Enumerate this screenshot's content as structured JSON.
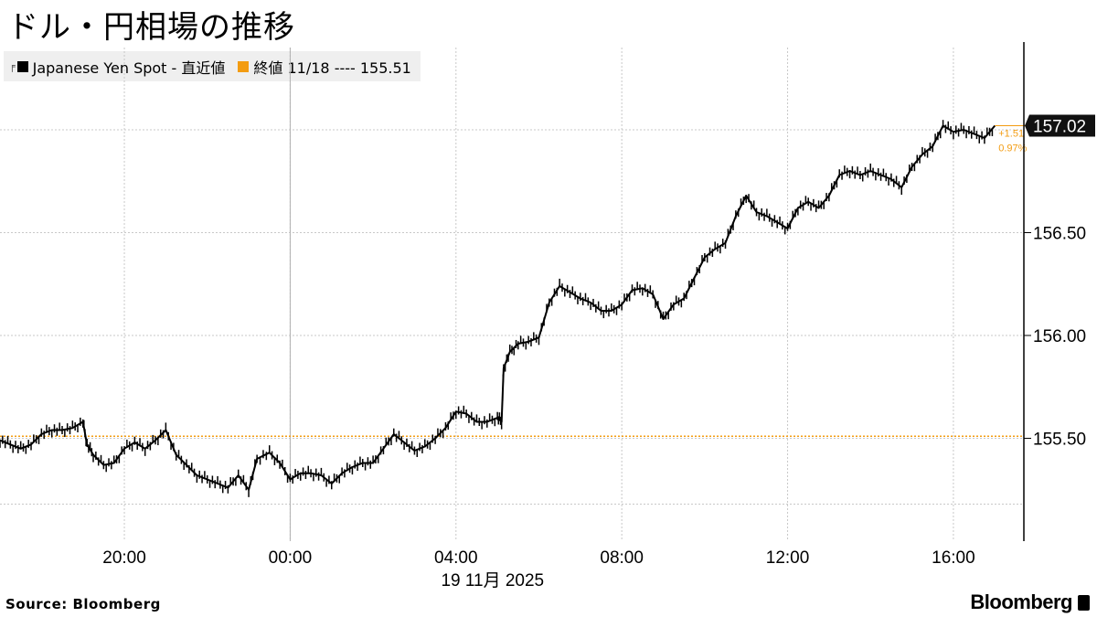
{
  "title": "ドル・円相場の推移",
  "legend": {
    "series_label": "Japanese Yen Spot - 直近値",
    "series_color": "#000000",
    "ref_label": "終値 11/18 ---- 155.51",
    "ref_color": "#f39c12"
  },
  "source": "Source:  Bloomberg",
  "brand": "Bloomberg",
  "chart_data": {
    "type": "line",
    "title": "ドル・円相場の推移",
    "xlabel": "19 11月 2025",
    "ylabel": "",
    "x_ticks": [
      "20:00",
      "00:00",
      "04:00",
      "08:00",
      "12:00",
      "16:00"
    ],
    "x_tick_hours": [
      20,
      24,
      28,
      32,
      36,
      40
    ],
    "x_range_hours": [
      17.0,
      41.7
    ],
    "y_ticks": [
      "155.50",
      "156.00",
      "156.50"
    ],
    "y_tick_values": [
      155.5,
      156.0,
      156.5
    ],
    "ylim": [
      155.0,
      157.4
    ],
    "vertical_marker_hour": 24,
    "reference_line": {
      "name": "終値 11/18",
      "value": 155.51,
      "color": "#f39c12"
    },
    "last_value_label": "157.02",
    "last_value": 157.02,
    "change_label": "+1.51",
    "change_pct_label": "0.97%",
    "series": [
      {
        "name": "Japanese Yen Spot - 直近値",
        "color": "#000000",
        "points": [
          [
            17.0,
            155.49
          ],
          [
            17.25,
            155.47
          ],
          [
            17.5,
            155.45
          ],
          [
            17.75,
            155.47
          ],
          [
            18.0,
            155.52
          ],
          [
            18.25,
            155.54
          ],
          [
            18.5,
            155.54
          ],
          [
            18.75,
            155.55
          ],
          [
            19.0,
            155.58
          ],
          [
            19.1,
            155.47
          ],
          [
            19.25,
            155.42
          ],
          [
            19.5,
            155.37
          ],
          [
            19.75,
            155.38
          ],
          [
            20.0,
            155.45
          ],
          [
            20.25,
            155.48
          ],
          [
            20.5,
            155.45
          ],
          [
            20.75,
            155.49
          ],
          [
            21.0,
            155.54
          ],
          [
            21.25,
            155.42
          ],
          [
            21.5,
            155.37
          ],
          [
            21.75,
            155.32
          ],
          [
            22.0,
            155.3
          ],
          [
            22.25,
            155.28
          ],
          [
            22.5,
            155.26
          ],
          [
            22.75,
            155.32
          ],
          [
            23.0,
            155.25
          ],
          [
            23.2,
            155.4
          ],
          [
            23.5,
            155.43
          ],
          [
            23.75,
            155.38
          ],
          [
            24.0,
            155.3
          ],
          [
            24.25,
            155.33
          ],
          [
            24.5,
            155.33
          ],
          [
            24.75,
            155.32
          ],
          [
            25.0,
            155.28
          ],
          [
            25.25,
            155.33
          ],
          [
            25.5,
            155.36
          ],
          [
            25.75,
            155.38
          ],
          [
            26.0,
            155.38
          ],
          [
            26.25,
            155.45
          ],
          [
            26.5,
            155.52
          ],
          [
            26.75,
            155.48
          ],
          [
            27.0,
            155.44
          ],
          [
            27.25,
            155.46
          ],
          [
            27.5,
            155.5
          ],
          [
            27.75,
            155.55
          ],
          [
            28.0,
            155.63
          ],
          [
            28.25,
            155.62
          ],
          [
            28.5,
            155.58
          ],
          [
            28.75,
            155.58
          ],
          [
            29.0,
            155.6
          ],
          [
            29.1,
            155.58
          ],
          [
            29.15,
            155.84
          ],
          [
            29.3,
            155.92
          ],
          [
            29.5,
            155.96
          ],
          [
            29.75,
            155.97
          ],
          [
            30.0,
            155.99
          ],
          [
            30.25,
            156.16
          ],
          [
            30.5,
            156.24
          ],
          [
            30.75,
            156.21
          ],
          [
            31.0,
            156.18
          ],
          [
            31.25,
            156.16
          ],
          [
            31.5,
            156.12
          ],
          [
            31.75,
            156.12
          ],
          [
            32.0,
            156.15
          ],
          [
            32.25,
            156.22
          ],
          [
            32.5,
            156.23
          ],
          [
            32.75,
            156.2
          ],
          [
            33.0,
            156.08
          ],
          [
            33.25,
            156.15
          ],
          [
            33.5,
            156.18
          ],
          [
            33.75,
            156.28
          ],
          [
            34.0,
            156.38
          ],
          [
            34.25,
            156.42
          ],
          [
            34.5,
            156.45
          ],
          [
            34.75,
            156.58
          ],
          [
            35.0,
            156.68
          ],
          [
            35.25,
            156.6
          ],
          [
            35.5,
            156.58
          ],
          [
            35.75,
            156.55
          ],
          [
            36.0,
            156.52
          ],
          [
            36.25,
            156.62
          ],
          [
            36.5,
            156.65
          ],
          [
            36.75,
            156.62
          ],
          [
            37.0,
            156.68
          ],
          [
            37.25,
            156.78
          ],
          [
            37.5,
            156.8
          ],
          [
            37.75,
            156.78
          ],
          [
            38.0,
            156.8
          ],
          [
            38.25,
            156.78
          ],
          [
            38.5,
            156.76
          ],
          [
            38.75,
            156.72
          ],
          [
            39.0,
            156.82
          ],
          [
            39.25,
            156.88
          ],
          [
            39.5,
            156.92
          ],
          [
            39.75,
            157.02
          ],
          [
            40.0,
            156.99
          ],
          [
            40.25,
            157.0
          ],
          [
            40.5,
            156.98
          ],
          [
            40.75,
            156.96
          ],
          [
            41.0,
            157.02
          ]
        ]
      }
    ]
  }
}
